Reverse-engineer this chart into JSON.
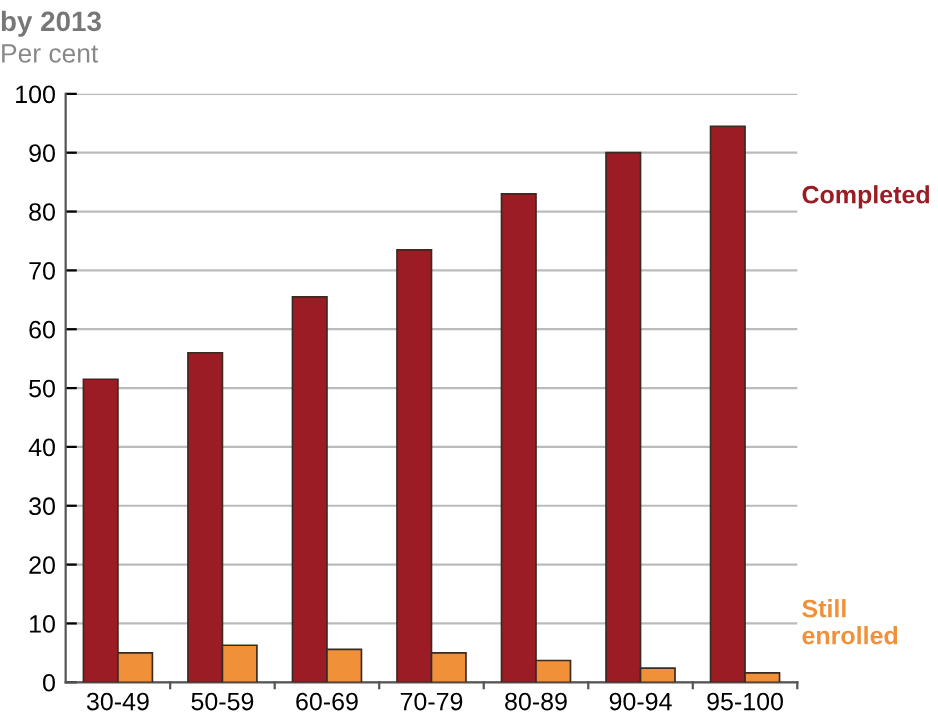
{
  "chart_data": {
    "type": "bar",
    "title": "by 2013",
    "subtitle": "Per cent",
    "categories": [
      "30-49",
      "50-59",
      "60-69",
      "70-79",
      "80-89",
      "90-94",
      "95-100"
    ],
    "series": [
      {
        "name": "Completed",
        "color": "#9b1c24",
        "values": [
          51.5,
          56,
          65.5,
          73.5,
          83,
          90,
          94.5
        ]
      },
      {
        "name": "Still\nenrolled",
        "color": "#f0913a",
        "values": [
          5,
          6.3,
          5.6,
          5,
          3.7,
          2.4,
          1.6
        ]
      }
    ],
    "ylim": [
      0,
      100
    ],
    "yticks": [
      0,
      10,
      20,
      30,
      40,
      50,
      60,
      70,
      80,
      90,
      100
    ],
    "grid": "y",
    "legend": "right"
  }
}
